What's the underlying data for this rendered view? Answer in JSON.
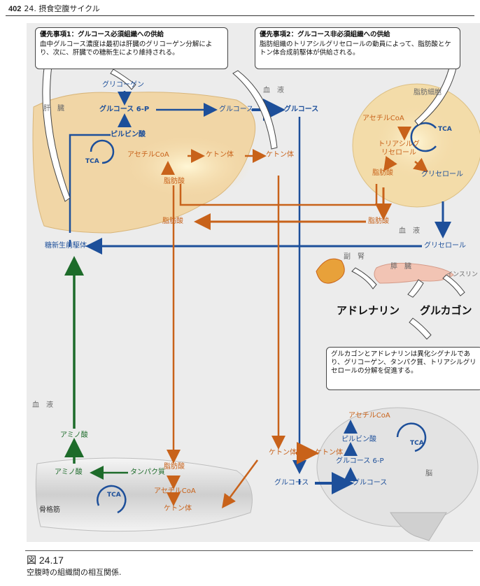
{
  "header": {
    "page_number": "402",
    "chapter": "24. 摂食空腹サイクル"
  },
  "boxes": {
    "priority1": {
      "title": "優先事項1：グルコース必須組織への供給",
      "body": "血中グルコース濃度は最初は肝臓のグリコーゲン分解により、次に、肝臓での糖新生により維持される。"
    },
    "priority2": {
      "title": "優先事項2：グルコース非必須組織への供給",
      "body": "脂肪組織のトリアシルグリセロールの動員によって、脂肪酸とケトン体合成前駆体が供給される。"
    },
    "signals": {
      "body": "グルカゴンとアドレナリンは異化シグナルであり、グリコーゲン、タンパク質、トリアシルグリセロールの分解を促進する。"
    }
  },
  "labels": {
    "liver": "肝　臓",
    "blood_top": "血　液",
    "blood_mid": "血　液",
    "blood_left": "血　液",
    "adipocyte": "脂肪細胞",
    "adrenal": "副　腎",
    "pancreas": "膵　臓",
    "insulin": "インスリン",
    "muscle": "骨格筋",
    "brain": "脳",
    "adrenaline": "アドレナリン",
    "glucagon": "グルカゴン"
  },
  "liver": {
    "glycogen": "グリコーゲン",
    "glucose6p": "グルコース 6-P",
    "pyruvate": "ピルビン酸",
    "tca": "TCA",
    "acetylcoa": "アセチルCoA",
    "ketone": "ケトン体",
    "fattyacid": "脂肪酸",
    "fattyacid_in": "脂肪酸"
  },
  "blood": {
    "glucose_mid": "グルコース",
    "glucose_right": "グルコース",
    "ketone_right": "ケトン体",
    "glycerol": "グリセロール",
    "gluconeogenic": "糖新生前駆体",
    "amino_acid": "アミノ酸",
    "ketone_low": "ケトン体",
    "glucose_low": "グルコース"
  },
  "adipose": {
    "acetylcoa": "アセチルCoA",
    "tca": "TCA",
    "tag": "トリアシルグリセロール",
    "fattyacid": "脂肪酸",
    "glycerol": "グリセロール",
    "fattyacid_out": "脂肪酸"
  },
  "muscle": {
    "amino_acid": "アミノ酸",
    "protein": "タンパク質",
    "tca": "TCA",
    "fattyacid": "脂肪酸",
    "acetylcoa": "アセチルCoA",
    "ketone": "ケトン体"
  },
  "brain": {
    "acetylcoa": "アセチルCoA",
    "pyruvate": "ピルビン酸",
    "glucose6p": "グルコース 6-P",
    "glucose": "グルコース",
    "ketone": "ケトン体",
    "tca": "TCA"
  },
  "caption": {
    "figure": "図 24.17",
    "text": "空腹時の組織間の相互関係."
  },
  "colors": {
    "blue": "#1d4f9a",
    "orange": "#c8621a",
    "green": "#1d6b2a"
  }
}
